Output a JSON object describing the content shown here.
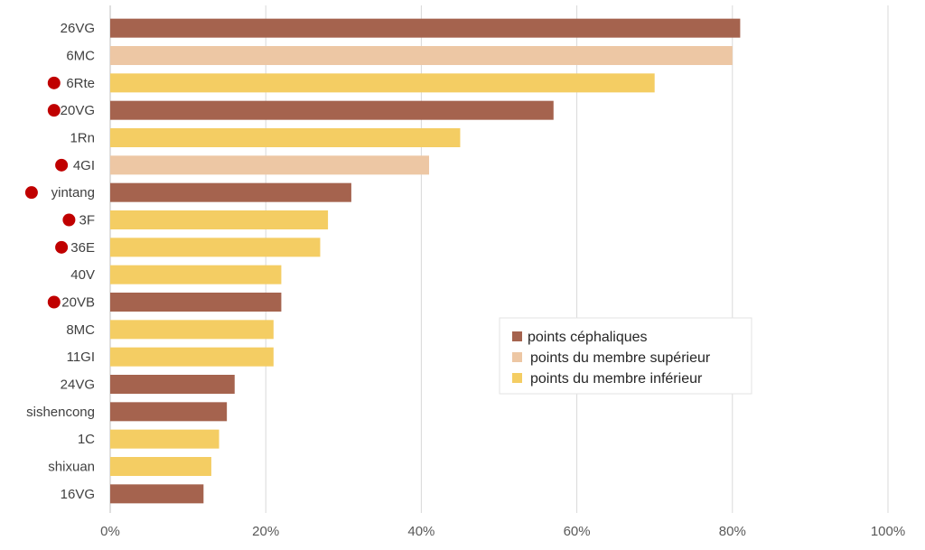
{
  "chart_data": {
    "type": "bar",
    "orientation": "horizontal",
    "categories": [
      "26VG",
      "6MC",
      "6Rte",
      "20VG",
      "1Rn",
      "4GI",
      "yintang",
      "3F",
      "36E",
      "40V",
      "20VB",
      "8MC",
      "11GI",
      "24VG",
      "sishencong",
      "1C",
      "shixuan",
      "16VG"
    ],
    "values": [
      81,
      80,
      70,
      57,
      45,
      41,
      31,
      28,
      27,
      22,
      22,
      21,
      21,
      16,
      15,
      14,
      13,
      12
    ],
    "groups": [
      "cephalic",
      "upper",
      "lower",
      "cephalic",
      "lower",
      "upper",
      "cephalic",
      "lower",
      "lower",
      "lower",
      "cephalic",
      "lower",
      "lower",
      "cephalic",
      "cephalic",
      "lower",
      "lower",
      "cephalic"
    ],
    "marked": [
      false,
      false,
      true,
      true,
      false,
      true,
      true,
      true,
      true,
      false,
      true,
      false,
      false,
      false,
      false,
      false,
      false,
      false
    ],
    "xlim": [
      0,
      100
    ],
    "xticks": [
      "0%",
      "20%",
      "40%",
      "60%",
      "80%",
      "100%"
    ],
    "grid": "vertical",
    "legend_position": "center-right",
    "series": [
      {
        "key": "cephalic",
        "name": "points céphaliques",
        "color": "#A5634E"
      },
      {
        "key": "upper",
        "name": "points du membre supérieur",
        "color": "#EDC7A4"
      },
      {
        "key": "lower",
        "name": "points du membre inférieur",
        "color": "#F4CD63"
      }
    ],
    "marker_color": "#C00000",
    "title": "",
    "xlabel": "",
    "ylabel": ""
  }
}
